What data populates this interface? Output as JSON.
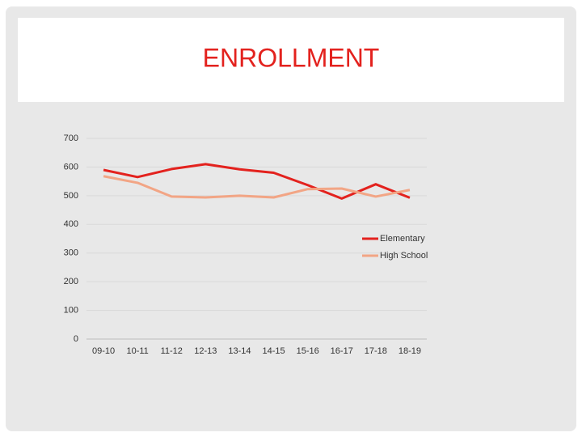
{
  "chart_data": {
    "type": "line",
    "title": "ENROLLMENT",
    "categories": [
      "09-10",
      "10-11",
      "11-12",
      "12-13",
      "13-14",
      "14-15",
      "15-16",
      "16-17",
      "17-18",
      "18-19"
    ],
    "series": [
      {
        "name": "Elementary",
        "color": "#e3221e",
        "values": [
          590,
          565,
          593,
          610,
          592,
          580,
          537,
          490,
          540,
          493
        ]
      },
      {
        "name": "High School",
        "color": "#f2a585",
        "values": [
          568,
          545,
          497,
          494,
          500,
          494,
          523,
          525,
          497,
          520
        ]
      }
    ],
    "ylim": [
      0,
      700
    ],
    "yticks": [
      0,
      100,
      200,
      300,
      400,
      500,
      600,
      700
    ],
    "grid": true,
    "legend": "right"
  }
}
